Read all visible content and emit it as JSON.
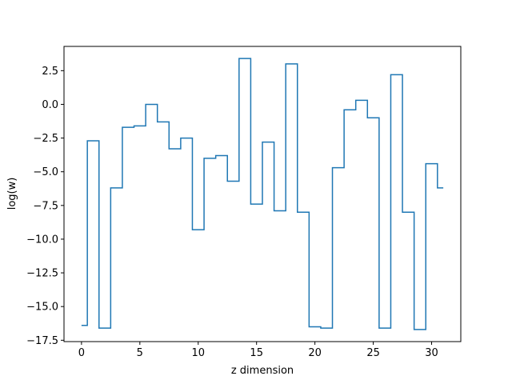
{
  "chart_data": {
    "type": "line",
    "drawstyle": "steps-mid",
    "title": "",
    "xlabel": "z dimension",
    "ylabel": "log(w)",
    "xlim": [
      -1.5,
      32.5
    ],
    "ylim": [
      -17.6,
      4.3
    ],
    "xticks": [
      0,
      5,
      10,
      15,
      20,
      25,
      30
    ],
    "xtick_labels": [
      "0",
      "5",
      "10",
      "15",
      "20",
      "25",
      "30"
    ],
    "yticks": [
      2.5,
      0.0,
      -2.5,
      -5.0,
      -7.5,
      -10.0,
      -12.5,
      -15.0,
      -17.5
    ],
    "ytick_labels": [
      "2.5",
      "0.0",
      "−2.5",
      "−5.0",
      "−7.5",
      "−10.0",
      "−12.5",
      "−15.0",
      "−17.5"
    ],
    "grid": false,
    "series": [
      {
        "color": "#1f77b4",
        "x": [
          0,
          1,
          2,
          3,
          4,
          5,
          6,
          7,
          8,
          9,
          10,
          11,
          12,
          13,
          14,
          15,
          16,
          17,
          18,
          19,
          20,
          21,
          22,
          23,
          24,
          25,
          26,
          27,
          28,
          29,
          30,
          31
        ],
        "values": [
          -16.4,
          -2.7,
          -16.6,
          -6.2,
          -1.7,
          -1.6,
          0.0,
          -1.3,
          -3.3,
          -2.5,
          -9.3,
          -4.0,
          -3.8,
          -5.7,
          3.4,
          -7.4,
          -2.8,
          -7.9,
          3.0,
          -8.0,
          -16.5,
          -16.6,
          -4.7,
          -0.4,
          0.3,
          -1.0,
          -16.6,
          2.2,
          -8.0,
          -16.7,
          -4.4,
          -6.2
        ]
      }
    ]
  }
}
